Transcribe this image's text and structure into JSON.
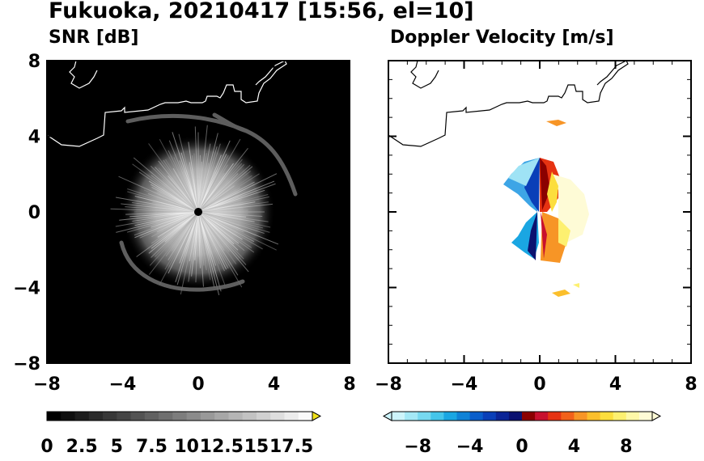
{
  "figure": {
    "title": "Fukuoka, 20210417 [15:56, el=10]"
  },
  "chart_data": [
    {
      "type": "heatmap",
      "title": "SNR [dB]",
      "xlim": [
        -8,
        8
      ],
      "ylim": [
        -8,
        8
      ],
      "xticks": [
        "−8",
        "−4",
        "0",
        "4",
        "8"
      ],
      "yticks": [
        "8",
        "4",
        "0",
        "−4",
        "−8"
      ],
      "xtick_values": [
        -8,
        -4,
        0,
        4,
        8
      ],
      "ytick_values": [
        8,
        4,
        0,
        -4,
        -8
      ],
      "grid": false,
      "background_color": "#000000",
      "colorbar": {
        "labels": [
          "0",
          "2.5",
          "5",
          "7.5",
          "10",
          "12.5",
          "15",
          "17.5"
        ],
        "values": [
          0,
          2.5,
          5,
          7.5,
          10,
          12.5,
          15,
          17.5
        ],
        "min": 0,
        "max": 19,
        "extend": "max",
        "extend_color": "#f0e21a"
      }
    },
    {
      "type": "heatmap",
      "title": "Doppler Velocity [m/s]",
      "xlim": [
        -8,
        8
      ],
      "ylim": [
        -8,
        8
      ],
      "xticks": [
        "−8",
        "−4",
        "0",
        "4",
        "8"
      ],
      "yticks": [],
      "xtick_values": [
        -8,
        -4,
        0,
        4,
        8
      ],
      "grid": false,
      "background_color": "#ffffff",
      "colorbar": {
        "labels": [
          "−8",
          "−4",
          "0",
          "4",
          "8"
        ],
        "values": [
          -8,
          -4,
          0,
          4,
          8
        ],
        "min": -10,
        "max": 10,
        "extend": "both",
        "colors": [
          "#cdf4fb",
          "#a4e8f6",
          "#77d9f0",
          "#45c5ea",
          "#1aa6e2",
          "#0f82d6",
          "#0a5ecb",
          "#0a3fb8",
          "#0b2496",
          "#0b1170",
          "#8b0000",
          "#c8102e",
          "#e63312",
          "#f2611a",
          "#f79526",
          "#fbbf2c",
          "#fcde3d",
          "#fdf070",
          "#fef8a8",
          "#fefbd6"
        ]
      }
    }
  ]
}
